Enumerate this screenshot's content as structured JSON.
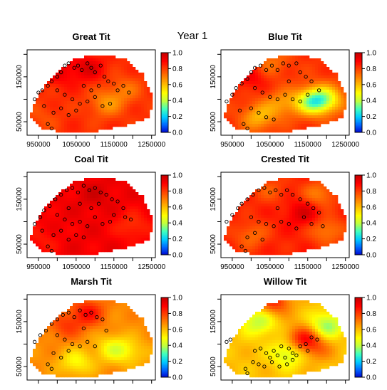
{
  "figure": {
    "title": "Year 1"
  },
  "colorbar": {
    "ticks": [
      "0.0",
      "0.2",
      "0.4",
      "0.6",
      "0.8",
      "1.0"
    ],
    "range": [
      0,
      1
    ],
    "palette": [
      "#0000cc",
      "#0066ff",
      "#00ccff",
      "#40ffbf",
      "#c0ff40",
      "#ffff00",
      "#ffc000",
      "#ff8000",
      "#ff4000",
      "#ff0000",
      "#c80000"
    ]
  },
  "axes": {
    "x_ticks": [
      "950000",
      "1050000",
      "1150000",
      "1250000"
    ],
    "y_ticks": [
      "50000",
      "150000"
    ]
  },
  "chart_data": [
    {
      "type": "heatmap",
      "title": "Great Tit",
      "xlim": [
        920000,
        1260000
      ],
      "ylim": [
        20000,
        210000
      ],
      "base": 0.83,
      "hotspots": [
        [
          1000000,
          160000,
          0.1
        ],
        [
          1080000,
          170000,
          0.12
        ],
        [
          1180000,
          120000,
          -0.1
        ],
        [
          1130000,
          90000,
          -0.15
        ],
        [
          960000,
          60000,
          -0.05
        ]
      ],
      "points": [
        [
          940000,
          100000
        ],
        [
          950000,
          115000
        ],
        [
          960000,
          120000
        ],
        [
          975000,
          130000
        ],
        [
          985000,
          140000
        ],
        [
          1000000,
          150000
        ],
        [
          1010000,
          160000
        ],
        [
          1020000,
          175000
        ],
        [
          1030000,
          180000
        ],
        [
          1045000,
          170000
        ],
        [
          1055000,
          175000
        ],
        [
          1065000,
          165000
        ],
        [
          1080000,
          180000
        ],
        [
          1090000,
          170000
        ],
        [
          1100000,
          160000
        ],
        [
          1115000,
          175000
        ],
        [
          1125000,
          150000
        ],
        [
          1135000,
          140000
        ],
        [
          1150000,
          135000
        ],
        [
          1160000,
          120000
        ],
        [
          1175000,
          130000
        ],
        [
          1190000,
          115000
        ],
        [
          1000000,
          120000
        ],
        [
          1020000,
          110000
        ],
        [
          1040000,
          100000
        ],
        [
          1060000,
          90000
        ],
        [
          1080000,
          95000
        ],
        [
          1100000,
          105000
        ],
        [
          1120000,
          85000
        ],
        [
          1140000,
          90000
        ],
        [
          990000,
          70000
        ],
        [
          1010000,
          80000
        ],
        [
          1030000,
          65000
        ],
        [
          1050000,
          75000
        ],
        [
          975000,
          45000
        ],
        [
          985000,
          35000
        ],
        [
          1070000,
          130000
        ],
        [
          1090000,
          120000
        ],
        [
          1110000,
          130000
        ],
        [
          965000,
          85000
        ]
      ]
    },
    {
      "type": "heatmap",
      "title": "Blue Tit",
      "xlim": [
        920000,
        1260000
      ],
      "ylim": [
        20000,
        210000
      ],
      "base": 0.82,
      "hotspots": [
        [
          1160000,
          95000,
          -0.4
        ],
        [
          1200000,
          100000,
          -0.3
        ],
        [
          1080000,
          90000,
          -0.15
        ],
        [
          1020000,
          60000,
          -0.2
        ],
        [
          1000000,
          150000,
          0.1
        ],
        [
          1050000,
          180000,
          -0.1
        ]
      ],
      "points": [
        [
          935000,
          95000
        ],
        [
          950000,
          110000
        ],
        [
          960000,
          125000
        ],
        [
          975000,
          135000
        ],
        [
          990000,
          145000
        ],
        [
          1000000,
          160000
        ],
        [
          1010000,
          170000
        ],
        [
          1025000,
          175000
        ],
        [
          1040000,
          165000
        ],
        [
          1055000,
          175000
        ],
        [
          1070000,
          165000
        ],
        [
          1085000,
          180000
        ],
        [
          1100000,
          175000
        ],
        [
          1120000,
          180000
        ],
        [
          1130000,
          160000
        ],
        [
          1145000,
          150000
        ],
        [
          1160000,
          140000
        ],
        [
          1010000,
          125000
        ],
        [
          1030000,
          115000
        ],
        [
          1050000,
          105000
        ],
        [
          1070000,
          100000
        ],
        [
          1090000,
          110000
        ],
        [
          1110000,
          100000
        ],
        [
          1130000,
          95000
        ],
        [
          1000000,
          80000
        ],
        [
          1020000,
          70000
        ],
        [
          1040000,
          60000
        ],
        [
          1060000,
          55000
        ],
        [
          980000,
          45000
        ],
        [
          990000,
          35000
        ],
        [
          1150000,
          110000
        ],
        [
          1180000,
          120000
        ],
        [
          1100000,
          140000
        ],
        [
          970000,
          75000
        ]
      ]
    },
    {
      "type": "heatmap",
      "title": "Coal Tit",
      "xlim": [
        920000,
        1260000
      ],
      "ylim": [
        20000,
        210000
      ],
      "base": 0.92,
      "hotspots": [
        [
          1100000,
          160000,
          0.05
        ],
        [
          1200000,
          90000,
          -0.1
        ],
        [
          960000,
          60000,
          -0.05
        ]
      ],
      "points": [
        [
          940000,
          95000
        ],
        [
          955000,
          110000
        ],
        [
          965000,
          125000
        ],
        [
          980000,
          135000
        ],
        [
          995000,
          150000
        ],
        [
          1010000,
          160000
        ],
        [
          1025000,
          170000
        ],
        [
          1040000,
          175000
        ],
        [
          1055000,
          165000
        ],
        [
          1070000,
          180000
        ],
        [
          1085000,
          170000
        ],
        [
          1100000,
          175000
        ],
        [
          1115000,
          165000
        ],
        [
          1130000,
          160000
        ],
        [
          1145000,
          150000
        ],
        [
          1160000,
          145000
        ],
        [
          1175000,
          130000
        ],
        [
          1000000,
          115000
        ],
        [
          1020000,
          105000
        ],
        [
          1040000,
          95000
        ],
        [
          1060000,
          100000
        ],
        [
          1080000,
          90000
        ],
        [
          1100000,
          110000
        ],
        [
          1120000,
          95000
        ],
        [
          1140000,
          100000
        ],
        [
          990000,
          70000
        ],
        [
          1010000,
          80000
        ],
        [
          1030000,
          60000
        ],
        [
          1050000,
          70000
        ],
        [
          1070000,
          65000
        ],
        [
          975000,
          45000
        ],
        [
          985000,
          35000
        ],
        [
          1090000,
          130000
        ],
        [
          1110000,
          140000
        ],
        [
          1150000,
          115000
        ],
        [
          1180000,
          110000
        ],
        [
          1195000,
          105000
        ],
        [
          960000,
          80000
        ],
        [
          1030000,
          130000
        ],
        [
          1060000,
          140000
        ]
      ]
    },
    {
      "type": "heatmap",
      "title": "Crested Tit",
      "xlim": [
        920000,
        1260000
      ],
      "ylim": [
        20000,
        210000
      ],
      "base": 0.85,
      "hotspots": [
        [
          1140000,
          120000,
          0.12
        ],
        [
          1180000,
          160000,
          -0.15
        ],
        [
          1200000,
          80000,
          -0.15
        ],
        [
          1000000,
          70000,
          -0.12
        ],
        [
          1050000,
          170000,
          -0.08
        ]
      ],
      "points": [
        [
          935000,
          100000
        ],
        [
          950000,
          115000
        ],
        [
          965000,
          130000
        ],
        [
          975000,
          140000
        ],
        [
          990000,
          150000
        ],
        [
          1005000,
          160000
        ],
        [
          1020000,
          170000
        ],
        [
          1035000,
          175000
        ],
        [
          1050000,
          165000
        ],
        [
          1065000,
          170000
        ],
        [
          1080000,
          160000
        ],
        [
          1095000,
          170000
        ],
        [
          1110000,
          160000
        ],
        [
          1130000,
          150000
        ],
        [
          1150000,
          140000
        ],
        [
          1165000,
          130000
        ],
        [
          1180000,
          120000
        ],
        [
          1000000,
          110000
        ],
        [
          1020000,
          100000
        ],
        [
          1040000,
          95000
        ],
        [
          1060000,
          90000
        ],
        [
          1080000,
          100000
        ],
        [
          1100000,
          95000
        ],
        [
          1120000,
          85000
        ],
        [
          1140000,
          110000
        ],
        [
          990000,
          65000
        ],
        [
          1010000,
          75000
        ],
        [
          1030000,
          60000
        ],
        [
          975000,
          45000
        ],
        [
          985000,
          35000
        ],
        [
          1160000,
          95000
        ],
        [
          1190000,
          90000
        ],
        [
          1070000,
          130000
        ]
      ]
    },
    {
      "type": "heatmap",
      "title": "Marsh Tit",
      "xlim": [
        920000,
        1260000
      ],
      "ylim": [
        20000,
        210000
      ],
      "base": 0.68,
      "hotspots": [
        [
          1080000,
          170000,
          0.2
        ],
        [
          1020000,
          140000,
          0.12
        ],
        [
          1150000,
          90000,
          -0.2
        ],
        [
          1050000,
          60000,
          -0.18
        ],
        [
          1200000,
          80000,
          -0.1
        ]
      ],
      "points": [
        [
          940000,
          105000
        ],
        [
          955000,
          120000
        ],
        [
          970000,
          130000
        ],
        [
          985000,
          145000
        ],
        [
          1000000,
          155000
        ],
        [
          1015000,
          165000
        ],
        [
          1030000,
          170000
        ],
        [
          1045000,
          160000
        ],
        [
          1060000,
          175000
        ],
        [
          1075000,
          165000
        ],
        [
          1090000,
          170000
        ],
        [
          1105000,
          160000
        ],
        [
          1120000,
          155000
        ],
        [
          1000000,
          120000
        ],
        [
          1020000,
          110000
        ],
        [
          1040000,
          100000
        ],
        [
          1060000,
          95000
        ],
        [
          1080000,
          105000
        ],
        [
          1100000,
          95000
        ],
        [
          990000,
          80000
        ],
        [
          1010000,
          70000
        ],
        [
          1030000,
          85000
        ],
        [
          975000,
          55000
        ],
        [
          985000,
          45000
        ],
        [
          1130000,
          130000
        ],
        [
          1070000,
          135000
        ]
      ]
    },
    {
      "type": "heatmap",
      "title": "Willow Tit",
      "xlim": [
        920000,
        1260000
      ],
      "ylim": [
        20000,
        210000
      ],
      "base": 0.6,
      "hotspots": [
        [
          1140000,
          110000,
          0.3
        ],
        [
          1060000,
          195000,
          0.25
        ],
        [
          1020000,
          150000,
          -0.2
        ],
        [
          1100000,
          80000,
          -0.2
        ],
        [
          1200000,
          140000,
          -0.25
        ],
        [
          1180000,
          90000,
          0.1
        ]
      ],
      "points": [
        [
          935000,
          105000
        ],
        [
          945000,
          110000
        ],
        [
          1010000,
          85000
        ],
        [
          1025000,
          90000
        ],
        [
          1040000,
          80000
        ],
        [
          1050000,
          70000
        ],
        [
          1060000,
          85000
        ],
        [
          1070000,
          75000
        ],
        [
          1080000,
          95000
        ],
        [
          1090000,
          70000
        ],
        [
          1100000,
          90000
        ],
        [
          1110000,
          80000
        ],
        [
          1120000,
          75000
        ],
        [
          1130000,
          95000
        ],
        [
          1145000,
          100000
        ],
        [
          1160000,
          115000
        ],
        [
          1175000,
          110000
        ],
        [
          1005000,
          60000
        ],
        [
          1020000,
          55000
        ],
        [
          1035000,
          50000
        ],
        [
          1055000,
          60000
        ],
        [
          1075000,
          50000
        ],
        [
          1095000,
          55000
        ],
        [
          985000,
          45000
        ],
        [
          990000,
          35000
        ],
        [
          1110000,
          65000
        ],
        [
          1150000,
          85000
        ]
      ]
    }
  ]
}
